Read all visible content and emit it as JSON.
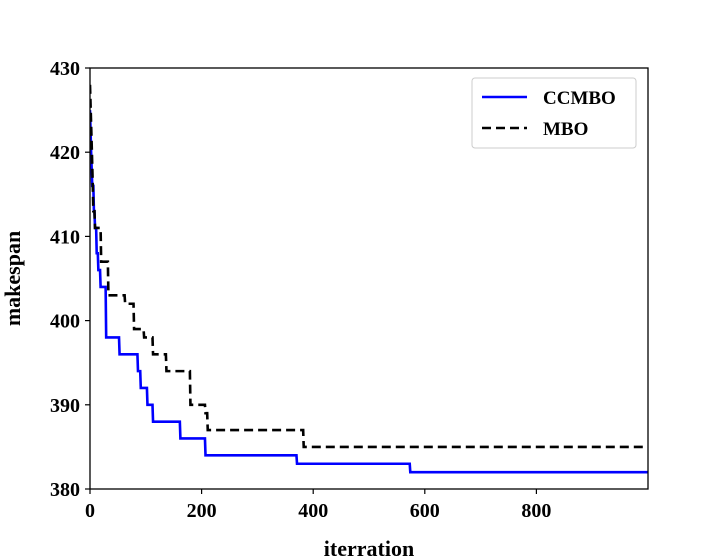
{
  "chart_data": {
    "type": "line",
    "title": "",
    "xlabel": "iterration",
    "ylabel": "makespan",
    "xlim": [
      0,
      1000
    ],
    "ylim": [
      380,
      430
    ],
    "xticks": [
      0,
      200,
      400,
      600,
      800
    ],
    "yticks": [
      380,
      390,
      400,
      410,
      420,
      430
    ],
    "grid": false,
    "legend_position": "top-right",
    "series": [
      {
        "name": "CCMBO",
        "color": "#0000ff",
        "style": "solid",
        "points": [
          [
            0,
            425
          ],
          [
            2,
            420
          ],
          [
            4,
            416
          ],
          [
            6,
            416
          ],
          [
            7,
            413
          ],
          [
            8,
            413
          ],
          [
            9,
            411
          ],
          [
            11,
            411
          ],
          [
            12,
            408
          ],
          [
            14,
            408
          ],
          [
            15,
            406
          ],
          [
            18,
            406
          ],
          [
            19,
            404
          ],
          [
            28,
            404
          ],
          [
            29,
            398
          ],
          [
            52,
            398
          ],
          [
            53,
            396
          ],
          [
            85,
            396
          ],
          [
            86,
            394
          ],
          [
            90,
            394
          ],
          [
            91,
            392
          ],
          [
            102,
            392
          ],
          [
            103,
            390
          ],
          [
            112,
            390
          ],
          [
            113,
            388
          ],
          [
            161,
            388
          ],
          [
            162,
            386
          ],
          [
            206,
            386
          ],
          [
            207,
            384
          ],
          [
            370,
            384
          ],
          [
            371,
            383
          ],
          [
            573,
            383
          ],
          [
            574,
            382
          ],
          [
            1000,
            382
          ]
        ]
      },
      {
        "name": "MBO",
        "color": "#000000",
        "style": "dashed",
        "points": [
          [
            0,
            428
          ],
          [
            3,
            421
          ],
          [
            5,
            416
          ],
          [
            6,
            413
          ],
          [
            8,
            413
          ],
          [
            9,
            411
          ],
          [
            19,
            411
          ],
          [
            20,
            407
          ],
          [
            32,
            407
          ],
          [
            33,
            403
          ],
          [
            62,
            403
          ],
          [
            63,
            402
          ],
          [
            78,
            402
          ],
          [
            79,
            399
          ],
          [
            96,
            399
          ],
          [
            97,
            398
          ],
          [
            112,
            398
          ],
          [
            113,
            396
          ],
          [
            136,
            396
          ],
          [
            137,
            394
          ],
          [
            179,
            394
          ],
          [
            180,
            390
          ],
          [
            206,
            390
          ],
          [
            207,
            389
          ],
          [
            210,
            389
          ],
          [
            211,
            387
          ],
          [
            382,
            387
          ],
          [
            383,
            385
          ],
          [
            1000,
            385
          ]
        ]
      }
    ]
  }
}
